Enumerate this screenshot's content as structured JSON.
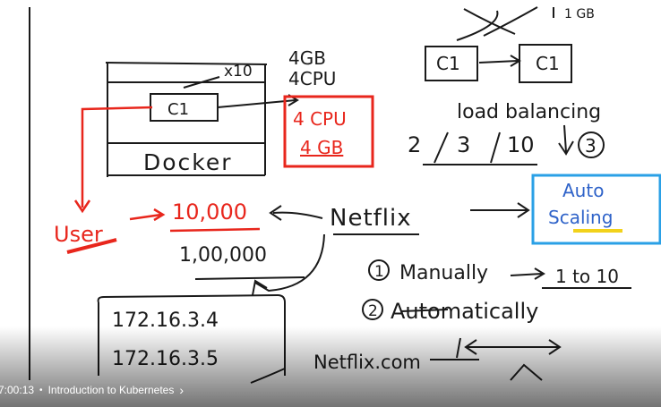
{
  "board": {
    "top_right_partial": "1 GB",
    "container_left": "C1",
    "container_right": "C1",
    "scale_note": "x10",
    "resources_black": [
      "4GB",
      "4CPU"
    ],
    "resources_red": [
      "4 CPU",
      "4 GB"
    ],
    "inner_container": "C1",
    "docker": "Docker",
    "load_balancing": "load balancing",
    "counts": [
      "2",
      "3",
      "10"
    ],
    "count_circled": "3",
    "auto_scaling": [
      "Auto",
      "Scaling"
    ],
    "user": "User",
    "users_red": "10,000",
    "users_black": "1,00,000",
    "netflix": "Netflix",
    "option1_num": "1",
    "option1": "Manually",
    "option1_range": "1 to 10",
    "option2_num": "2",
    "option2": "Automatically",
    "ips": [
      "172.16.3.4",
      "172.16.3.5"
    ],
    "netflix_com": "Netflix.com"
  },
  "colors": {
    "ink_black": "#1a1a1a",
    "ink_red": "#e8261c",
    "ink_blue": "#2f63c9",
    "box_blue": "#2aa0e6",
    "highlight_yellow": "#f2d21b"
  },
  "player": {
    "timestamp": "7:00:13",
    "separator": "•",
    "chapter_title": "Introduction to Kubernetes",
    "chevron_icon": "chevron-right-icon"
  }
}
